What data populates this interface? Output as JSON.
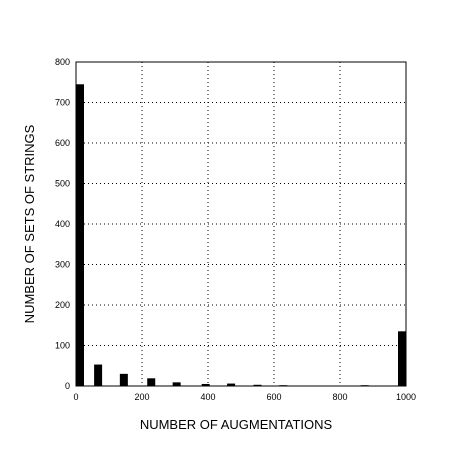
{
  "chart_data": {
    "type": "bar",
    "title": "",
    "xlabel": "NUMBER OF AUGMENTATIONS",
    "ylabel": "NUMBER OF SETS OF STRINGS",
    "xlim": [
      0,
      1000
    ],
    "ylim": [
      0,
      800
    ],
    "xticks": [
      0,
      200,
      400,
      600,
      800,
      1000
    ],
    "yticks": [
      0,
      100,
      200,
      300,
      400,
      500,
      600,
      700,
      800
    ],
    "grid": true,
    "grid_style": "dotted",
    "bar_color": "#000000",
    "x": [
      0,
      67,
      145,
      228,
      305,
      393,
      470,
      550,
      628,
      875,
      993
    ],
    "values": [
      745,
      53,
      30,
      19,
      9,
      5,
      6,
      3,
      2,
      2,
      135
    ]
  }
}
